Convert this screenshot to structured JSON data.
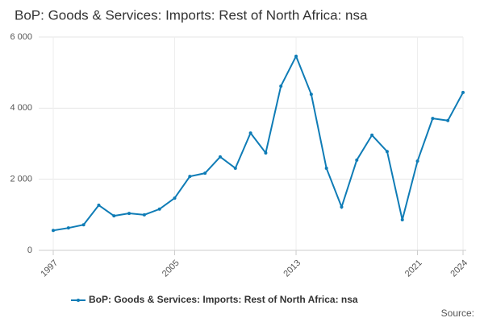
{
  "chart_data": {
    "type": "line",
    "title": "BoP: Goods & Services: Imports: Rest of North Africa: nsa",
    "x": [
      1997,
      1998,
      1999,
      2000,
      2001,
      2002,
      2003,
      2004,
      2005,
      2006,
      2007,
      2008,
      2009,
      2010,
      2011,
      2012,
      2013,
      2014,
      2015,
      2016,
      2017,
      2018,
      2019,
      2020,
      2021,
      2022,
      2023,
      2024
    ],
    "series": [
      {
        "name": "BoP: Goods & Services: Imports: Rest of North Africa: nsa",
        "color": "#0f7cb6",
        "values": [
          560,
          630,
          720,
          1270,
          970,
          1040,
          1000,
          1160,
          1470,
          2080,
          2170,
          2630,
          2310,
          3300,
          2740,
          4620,
          5460,
          4390,
          2310,
          1220,
          2540,
          3240,
          2780,
          860,
          2510,
          3710,
          3650,
          4440
        ]
      }
    ],
    "xlim": [
      1997,
      2024
    ],
    "xticks": [
      1997,
      2005,
      2013,
      2021,
      2024
    ],
    "ylim": [
      0,
      6000
    ],
    "yticks": [
      0,
      {
        "value": 2000,
        "label": "2 000"
      },
      {
        "value": 4000,
        "label": "4 000"
      },
      {
        "value": 6000,
        "label": "6 000"
      }
    ],
    "grid": true,
    "legend": "bottom",
    "source": "Source:"
  }
}
